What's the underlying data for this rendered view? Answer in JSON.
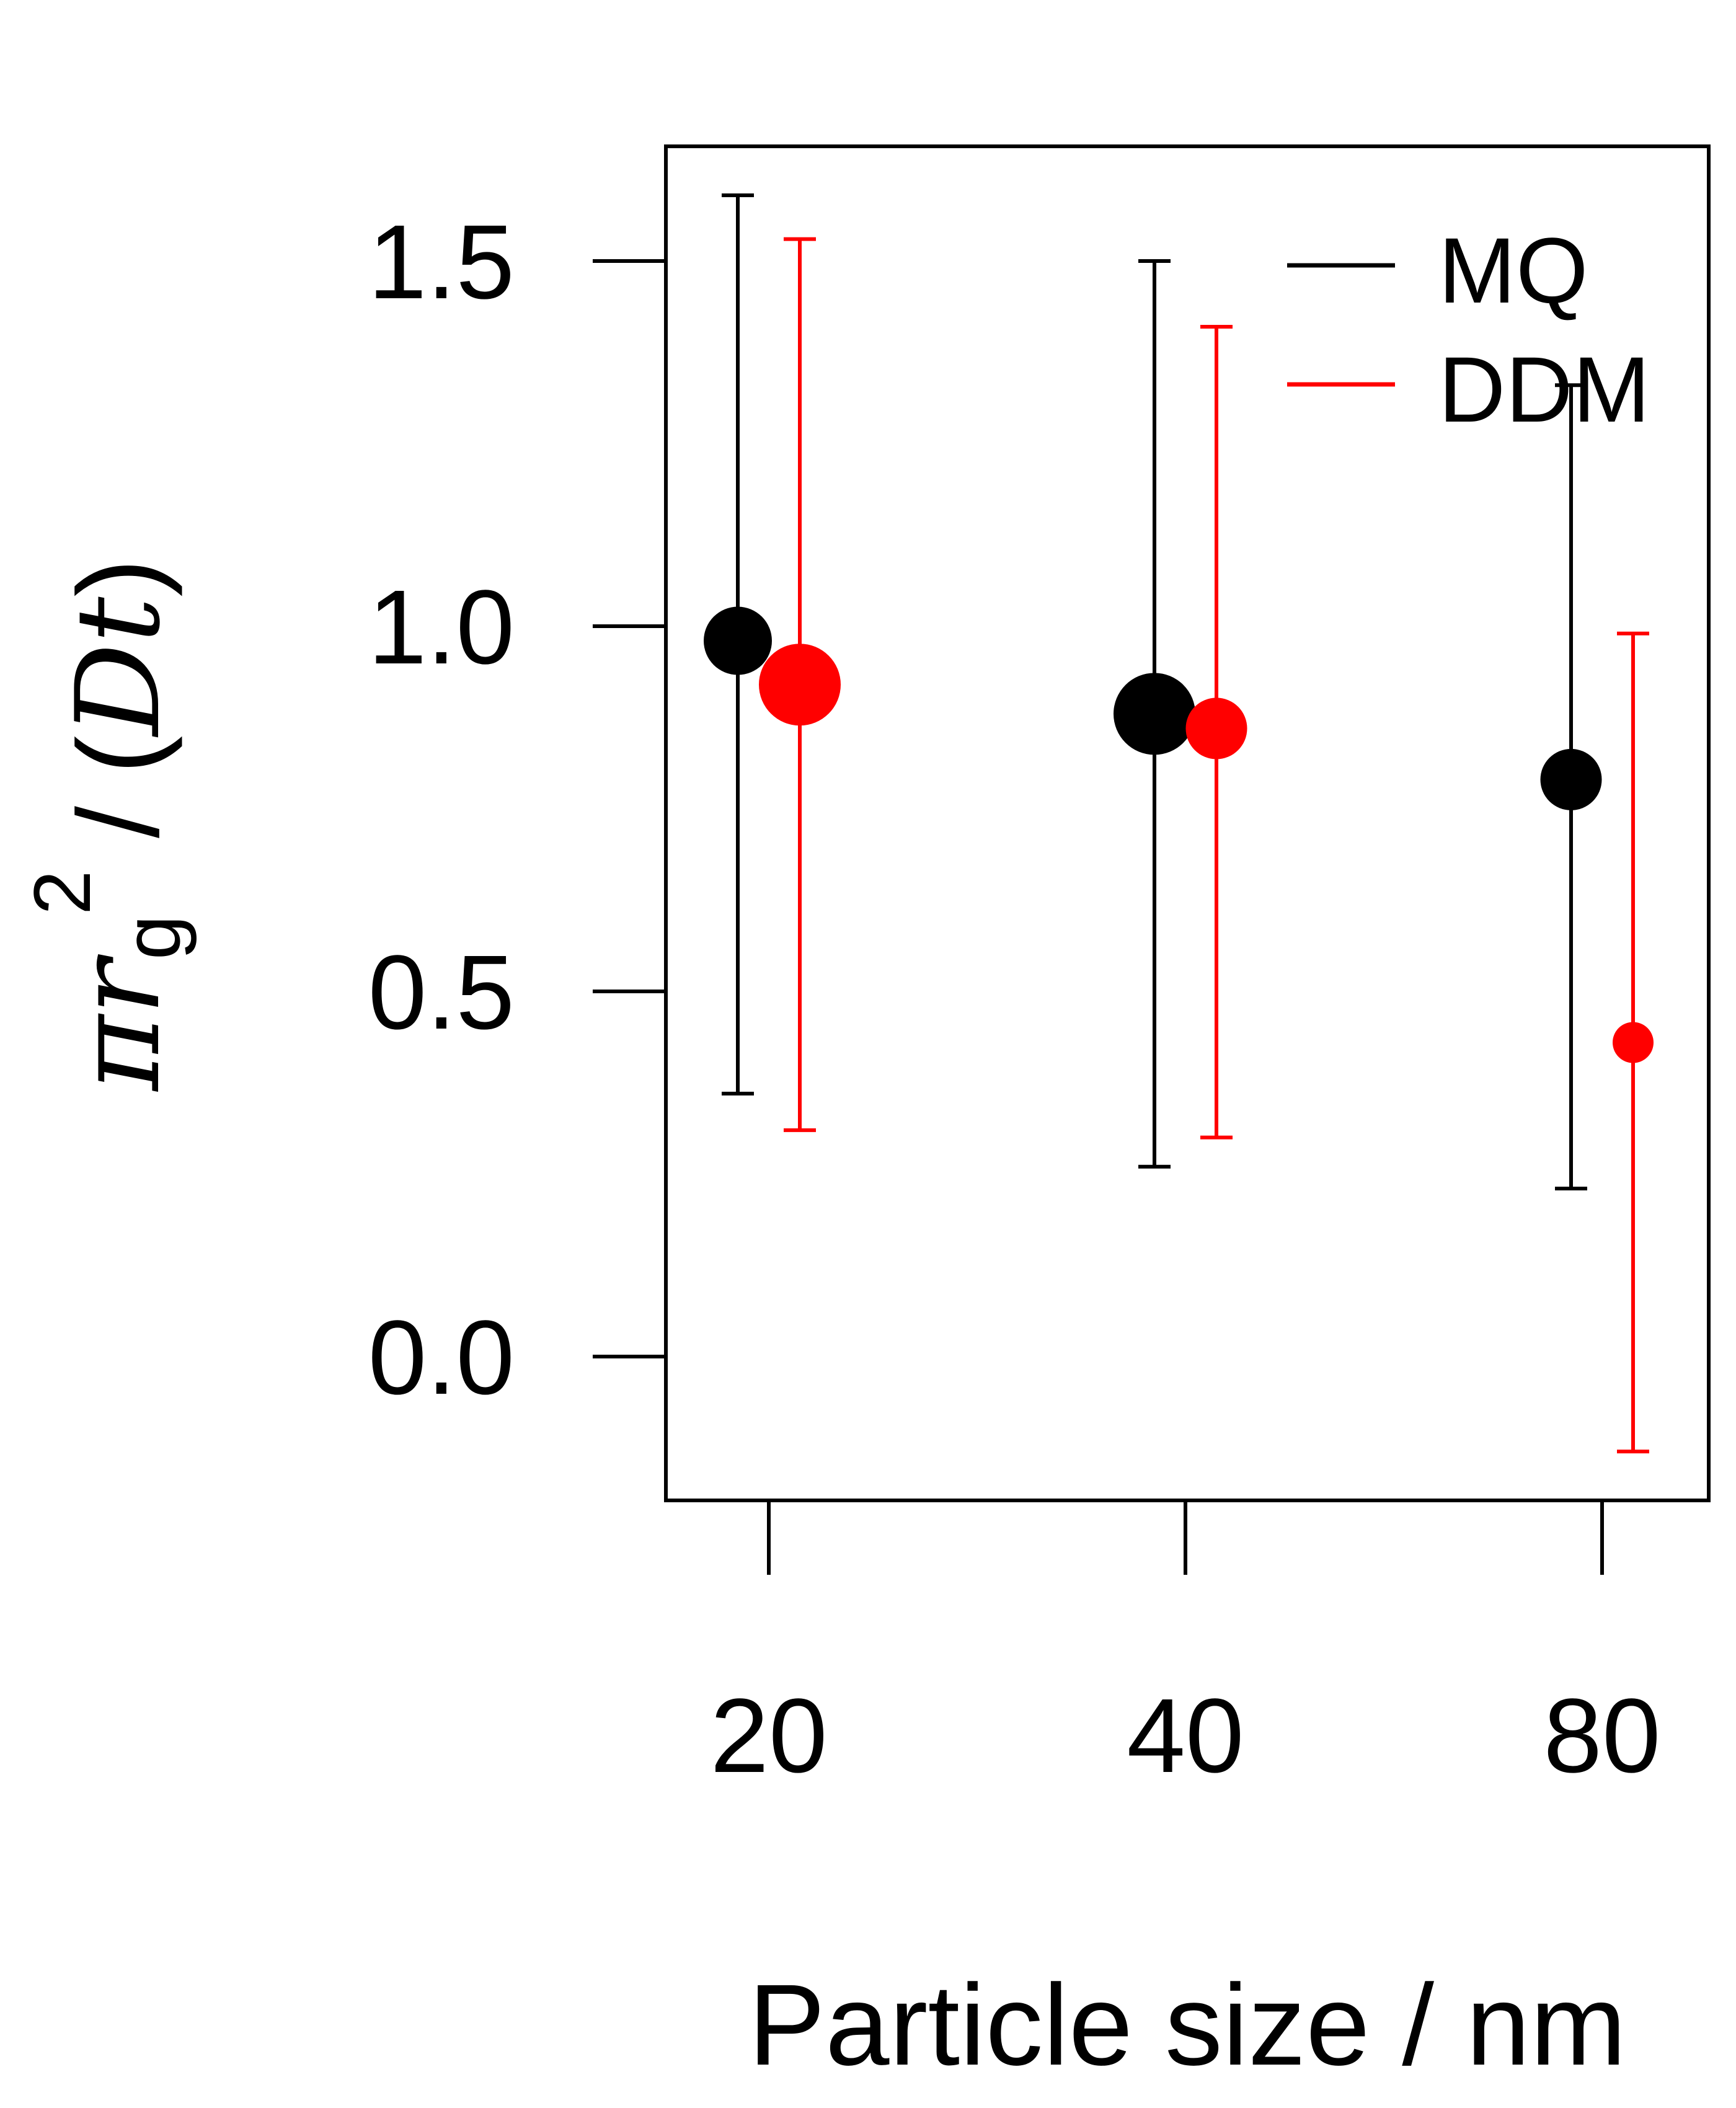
{
  "chart_data": {
    "type": "scatter",
    "title": "",
    "xlabel": "Particle size / nm",
    "ylabel": {
      "parts": [
        "π",
        "r",
        "g",
        "2",
        " / (",
        "D",
        "t",
        ")"
      ]
    },
    "categories": [
      "20",
      "40",
      "80"
    ],
    "ylim": [
      -0.2,
      1.65
    ],
    "yticks": [
      0.0,
      0.5,
      1.0,
      1.5
    ],
    "ytick_labels": [
      "0.0",
      "0.5",
      "1.0",
      "1.5"
    ],
    "grid": false,
    "legend_position": "top-right",
    "series": [
      {
        "name": "MQ",
        "color": "#000000",
        "values": [
          0.98,
          0.88,
          0.79
        ],
        "err_low": [
          0.36,
          0.26,
          0.23
        ],
        "err_high": [
          1.59,
          1.5,
          1.33
        ],
        "marker_size": [
          1.0,
          1.2,
          0.9
        ]
      },
      {
        "name": "DDM",
        "color": "#ff0000",
        "values": [
          0.92,
          0.86,
          0.43
        ],
        "err_low": [
          0.31,
          0.3,
          -0.13
        ],
        "err_high": [
          1.53,
          1.41,
          0.99
        ],
        "marker_size": [
          1.2,
          0.9,
          0.6
        ]
      }
    ]
  }
}
